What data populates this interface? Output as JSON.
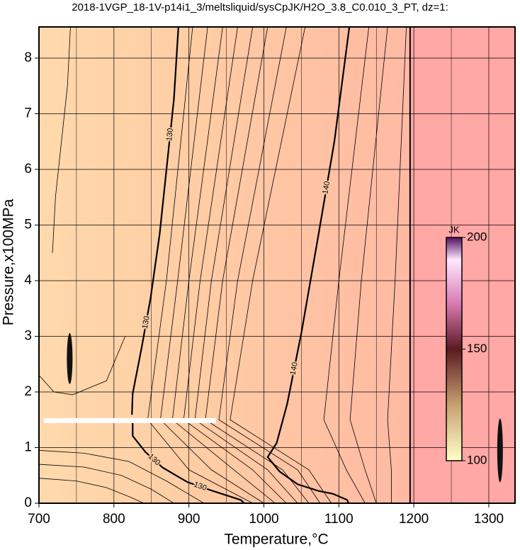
{
  "chart_data": {
    "type": "contour",
    "title": "2018-1VGP_18-1V-p14i1_3/meltsliquid/sysCpJK/H2O_3.8_C0.010_3_PT, dz=1:",
    "xlabel": "Temperature,°C",
    "ylabel": "Pressure,x100MPa",
    "xlim": [
      700,
      1335
    ],
    "ylim": [
      0,
      8.56
    ],
    "xticks": [
      700,
      800,
      900,
      1000,
      1100,
      1200,
      1300
    ],
    "xminorticks": [
      750,
      850,
      950,
      1050,
      1150,
      1250
    ],
    "yticks": [
      0,
      1,
      2,
      3,
      4,
      5,
      6,
      7,
      8
    ],
    "grid": true,
    "boundary_x": 1195,
    "contours": [
      {
        "level": 130,
        "color": "#000000",
        "x": [
          886,
          880,
          870,
          861,
          849,
          837,
          825,
          824,
          null,
          825,
          825,
          842,
          865,
          898,
          932,
          969,
          974
        ],
        "y": [
          8.56,
          7.26,
          5.99,
          4.84,
          3.7,
          2.8,
          1.97,
          1.59,
          null,
          1.44,
          1.21,
          0.92,
          0.64,
          0.38,
          0.22,
          0.06,
          0
        ]
      },
      {
        "level": 140,
        "color": "#000000",
        "x": [
          1114,
          1094,
          1073,
          1050,
          1031,
          1017,
          1005,
          1021,
          1045,
          1073,
          1092,
          1111,
          1113
        ],
        "y": [
          8.56,
          6.5,
          4.84,
          3.06,
          1.78,
          1.08,
          0.83,
          0.57,
          0.34,
          0.22,
          0.17,
          0.06,
          0
        ]
      }
    ],
    "thin_contours": [
      {
        "x": [
          905,
          870,
          845,
          900,
          985
        ],
        "y": [
          8.56,
          4,
          1.5,
          0.6,
          0
        ]
      },
      {
        "x": [
          925,
          885,
          862,
          930,
          1000
        ],
        "y": [
          8.56,
          4,
          1.5,
          0.6,
          0
        ]
      },
      {
        "x": [
          945,
          900,
          878,
          960,
          1015
        ],
        "y": [
          8.56,
          4,
          1.5,
          0.6,
          0
        ]
      },
      {
        "x": [
          965,
          915,
          893,
          985,
          1030
        ],
        "y": [
          8.56,
          4,
          1.5,
          0.6,
          0
        ]
      },
      {
        "x": [
          985,
          930,
          908,
          1005,
          1045
        ],
        "y": [
          8.56,
          4,
          1.5,
          0.6,
          0
        ]
      },
      {
        "x": [
          1005,
          945,
          922,
          1025,
          1060
        ],
        "y": [
          8.56,
          4,
          1.5,
          0.6,
          0
        ]
      },
      {
        "x": [
          1030,
          965,
          940,
          1045,
          1075
        ],
        "y": [
          8.56,
          4,
          1.5,
          0.6,
          0
        ]
      },
      {
        "x": [
          1055,
          985,
          955,
          1060,
          1090
        ],
        "y": [
          8.56,
          4,
          1.5,
          0.6,
          0
        ]
      },
      {
        "x": [
          1140,
          1100,
          1080,
          1110,
          1135
        ],
        "y": [
          8.56,
          4,
          1.5,
          0.6,
          0
        ]
      },
      {
        "x": [
          1165,
          1130,
          1115,
          1135,
          1150
        ],
        "y": [
          8.56,
          4,
          1.5,
          0.6,
          0
        ]
      },
      {
        "x": [
          1190,
          1175,
          1165,
          1170,
          1170
        ],
        "y": [
          8.56,
          4,
          1.5,
          0.6,
          0
        ]
      },
      {
        "x": [
          700,
          760,
          820,
          870,
          920
        ],
        "y": [
          0.95,
          0.9,
          0.75,
          0.4,
          0
        ]
      },
      {
        "x": [
          700,
          760,
          810,
          850,
          880
        ],
        "y": [
          0.7,
          0.65,
          0.5,
          0.25,
          0
        ]
      },
      {
        "x": [
          700,
          750,
          790,
          820,
          840
        ],
        "y": [
          0.45,
          0.4,
          0.28,
          0.12,
          0
        ]
      },
      {
        "x": [
          700,
          720,
          745,
          790,
          815
        ],
        "y": [
          2.3,
          2.0,
          1.95,
          2.2,
          3.0
        ]
      },
      {
        "x": [
          742,
          738,
          730,
          722,
          718
        ],
        "y": [
          8.56,
          7.5,
          6.5,
          5.5,
          4.5
        ]
      }
    ],
    "colorbar": {
      "label": "JK",
      "lim": [
        100,
        200
      ],
      "ticks": [
        100,
        150,
        200
      ]
    }
  }
}
